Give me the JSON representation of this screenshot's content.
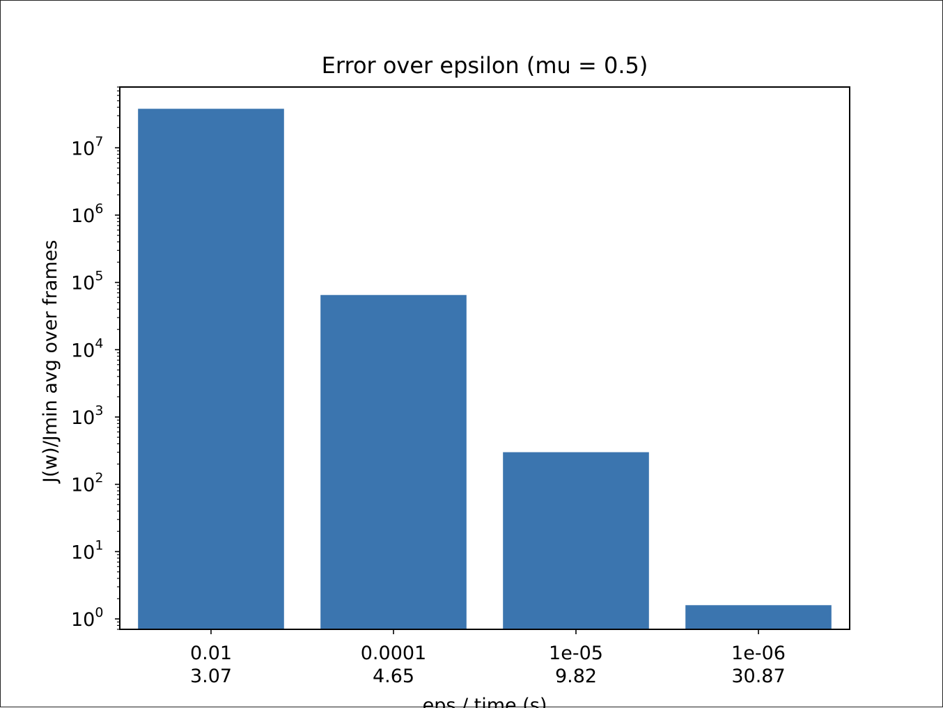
{
  "chart_data": {
    "type": "bar",
    "title": "Error over epsilon (mu = 0.5)",
    "xlabel": "eps / time (s)",
    "ylabel": "J(w)/Jmin avg over frames",
    "yscale": "log",
    "ylim": [
      0.7,
      80000000
    ],
    "yticks": [
      {
        "exp": 0,
        "label": "10",
        "sup": "0"
      },
      {
        "exp": 1,
        "label": "10",
        "sup": "1"
      },
      {
        "exp": 2,
        "label": "10",
        "sup": "2"
      },
      {
        "exp": 3,
        "label": "10",
        "sup": "3"
      },
      {
        "exp": 4,
        "label": "10",
        "sup": "4"
      },
      {
        "exp": 5,
        "label": "10",
        "sup": "5"
      },
      {
        "exp": 6,
        "label": "10",
        "sup": "6"
      },
      {
        "exp": 7,
        "label": "10",
        "sup": "7"
      }
    ],
    "categories": [
      {
        "eps": "0.01",
        "time": "3.07"
      },
      {
        "eps": "0.0001",
        "time": "4.65"
      },
      {
        "eps": "1e-05",
        "time": "9.82"
      },
      {
        "eps": "1e-06",
        "time": "30.87"
      }
    ],
    "values": [
      38000000,
      65000,
      300,
      1.6
    ],
    "bar_color": "#3b75af",
    "grid": false,
    "legend": "none"
  }
}
